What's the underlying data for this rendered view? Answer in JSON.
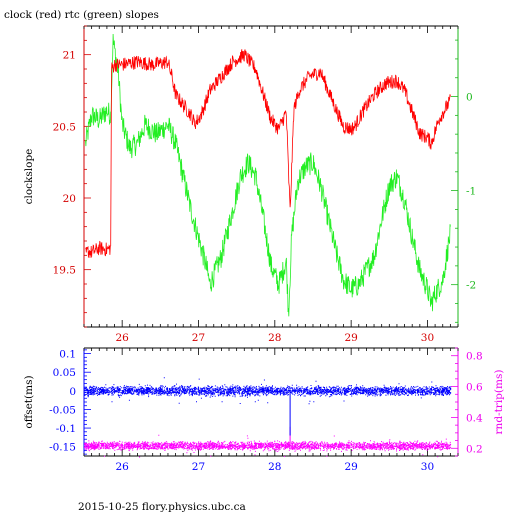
{
  "figure": {
    "title": "clock (red) rtc (green) slopes",
    "footer": "2015-10-25 flory.physics.ubc.ca"
  },
  "colors": {
    "axis": "#000000",
    "left_top": "#d40000",
    "right_top": "#1cb81c",
    "left_bottom": "#0000ff",
    "right_bottom": "#ee00ee",
    "bottom_x": "#0000ff",
    "clock": "#ff0000",
    "rtc": "#22ee22",
    "offset": "#0000ff",
    "rndtrip": "#ff00ff"
  },
  "chart_data": [
    {
      "type": "line",
      "title": "clock (red) rtc (green) slopes",
      "xlim": [
        25.5,
        30.4
      ],
      "x_ticks": [
        "26",
        "27",
        "28",
        "29",
        "30"
      ],
      "ylabel": "clockslope",
      "ylim": [
        19.1,
        21.2
      ],
      "y_ticks": [
        "19.5",
        "20",
        "20.5",
        "21"
      ],
      "ylabel_right": "",
      "ylim_right": [
        -2.45,
        0.75
      ],
      "y_ticks_right": [
        "-2",
        "-1",
        "0"
      ],
      "grid": false,
      "series": [
        {
          "axis": "left",
          "x": [
            25.52,
            25.55,
            25.6,
            25.7,
            25.8,
            25.85,
            25.86,
            25.9,
            26.0,
            26.2,
            26.4,
            26.6,
            26.65,
            26.7,
            26.8,
            26.9,
            26.95,
            27.0,
            27.05,
            27.15,
            27.3,
            27.45,
            27.6,
            27.75,
            27.85,
            27.95,
            28.05,
            28.15,
            28.2,
            28.25,
            28.32,
            28.45,
            28.6,
            28.7,
            28.8,
            28.9,
            29.0,
            29.05,
            29.15,
            29.3,
            29.45,
            29.6,
            29.7,
            29.8,
            29.9,
            30.0,
            30.05,
            30.15,
            30.3
          ],
          "y": [
            19.6,
            19.63,
            19.62,
            19.65,
            19.64,
            19.65,
            20.9,
            20.93,
            20.93,
            20.95,
            20.93,
            20.95,
            20.85,
            20.72,
            20.65,
            20.58,
            20.52,
            20.55,
            20.6,
            20.75,
            20.85,
            20.95,
            21.0,
            20.9,
            20.72,
            20.55,
            20.48,
            20.6,
            19.9,
            20.62,
            20.75,
            20.85,
            20.88,
            20.75,
            20.62,
            20.5,
            20.48,
            20.5,
            20.6,
            20.72,
            20.8,
            20.82,
            20.75,
            20.6,
            20.45,
            20.42,
            20.38,
            20.55,
            20.68
          ]
        },
        {
          "axis": "right",
          "x": [
            25.52,
            25.6,
            25.7,
            25.8,
            25.85,
            25.88,
            25.95,
            26.0,
            26.1,
            26.2,
            26.3,
            26.45,
            26.6,
            26.7,
            26.8,
            26.9,
            27.0,
            27.05,
            27.1,
            27.15,
            27.3,
            27.45,
            27.55,
            27.65,
            27.75,
            27.85,
            27.95,
            28.05,
            28.15,
            28.18,
            28.22,
            28.3,
            28.4,
            28.5,
            28.6,
            28.7,
            28.8,
            28.9,
            29.0,
            29.1,
            29.2,
            29.3,
            29.4,
            29.5,
            29.6,
            29.7,
            29.8,
            29.9,
            30.0,
            30.05,
            30.1,
            30.2,
            30.3
          ],
          "y": [
            -0.5,
            -0.2,
            -0.25,
            -0.15,
            -0.2,
            0.6,
            0.25,
            -0.3,
            -0.55,
            -0.5,
            -0.3,
            -0.4,
            -0.3,
            -0.5,
            -0.85,
            -1.2,
            -1.5,
            -1.65,
            -1.8,
            -2.0,
            -1.7,
            -1.2,
            -0.85,
            -0.7,
            -0.85,
            -1.3,
            -1.8,
            -2.0,
            -1.75,
            -2.3,
            -1.5,
            -0.9,
            -0.75,
            -0.7,
            -0.95,
            -1.3,
            -1.65,
            -1.95,
            -2.05,
            -2.0,
            -1.85,
            -1.7,
            -1.3,
            -0.95,
            -0.85,
            -1.1,
            -1.5,
            -1.85,
            -2.05,
            -2.2,
            -2.1,
            -1.95,
            -1.45
          ]
        }
      ]
    },
    {
      "type": "scatter",
      "xlim": [
        25.5,
        30.4
      ],
      "x_ticks": [
        "26",
        "27",
        "28",
        "29",
        "30"
      ],
      "ylabel": "offset(ms)",
      "ylim": [
        -0.175,
        0.115
      ],
      "y_ticks": [
        "0.1",
        "0.05",
        "0",
        "-0.05",
        "-0.1",
        "-0.15"
      ],
      "ylabel_right": "rnd-trip(ms)",
      "ylim_right": [
        0.15,
        0.85
      ],
      "y_ticks_right": [
        "0.8",
        "0.6",
        "0.4",
        "0.2"
      ],
      "grid": false,
      "series": [
        {
          "axis": "left",
          "x_range": [
            25.5,
            30.3
          ],
          "center": 0.0,
          "spread": 0.012,
          "spike": {
            "x": 28.2,
            "y": -0.12
          }
        },
        {
          "axis": "right",
          "x_range": [
            25.5,
            30.3
          ],
          "center": 0.215,
          "spread": 0.025,
          "spike": {
            "x": 28.2,
            "y": 0.34
          }
        }
      ]
    }
  ]
}
